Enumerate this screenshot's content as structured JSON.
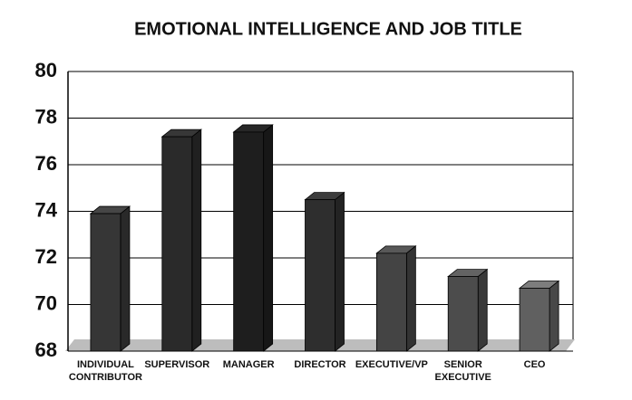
{
  "chart_data": {
    "type": "bar3d",
    "title": "EMOTIONAL INTELLIGENCE AND JOB TITLE",
    "categories": [
      "INDIVIDUAL CONTRIBUTOR",
      "SUPERVISOR",
      "MANAGER",
      "DIRECTOR",
      "EXECUTIVE/VP",
      "SENIOR EXECUTIVE",
      "CEO"
    ],
    "values": [
      73.9,
      77.2,
      77.4,
      74.5,
      72.2,
      71.2,
      70.7
    ],
    "colors": [
      "#363636",
      "#2a2a2a",
      "#1e1e1e",
      "#2e2e2e",
      "#444444",
      "#4c4c4c",
      "#606060"
    ],
    "ylim": [
      68,
      80
    ],
    "yticks": [
      68,
      70,
      72,
      74,
      76,
      78,
      80
    ],
    "grid": true
  }
}
